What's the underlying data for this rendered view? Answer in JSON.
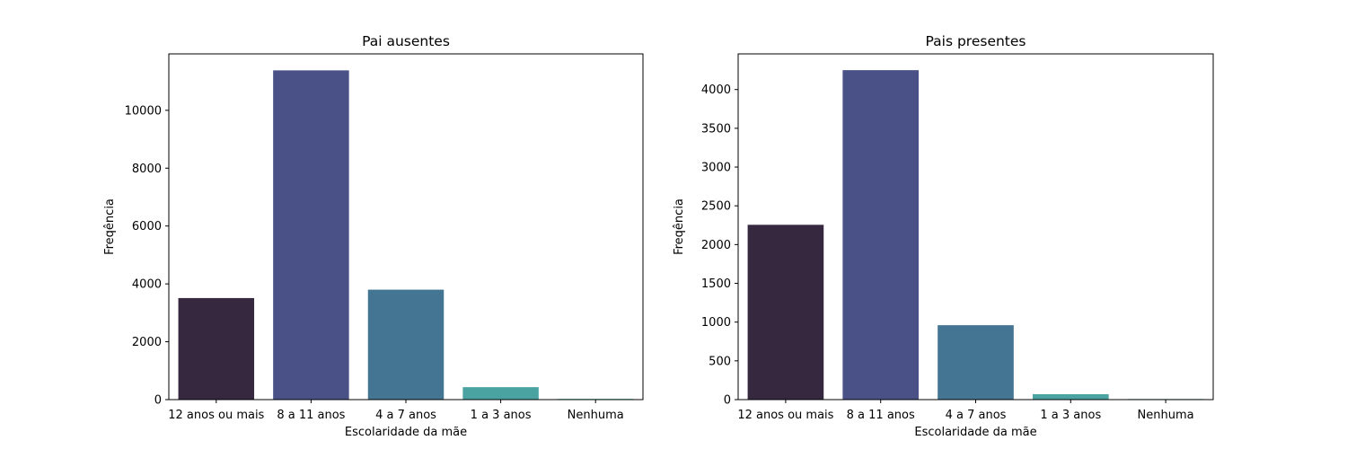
{
  "chart_data": [
    {
      "type": "bar",
      "title": "Pai ausentes",
      "xlabel": "Escolaridade da mãe",
      "ylabel": "Freqência",
      "categories": [
        "12 anos ou mais",
        "8 a 11 anos",
        "4 a 7 anos",
        "1 a 3 anos",
        "Nenhuma"
      ],
      "values": [
        3510,
        11380,
        3800,
        430,
        25
      ],
      "ylim": [
        0,
        11950
      ],
      "yticks": [
        0,
        2000,
        4000,
        6000,
        8000,
        10000
      ],
      "ytick_labels": [
        "0",
        "2000",
        "4000",
        "6000",
        "8000",
        "10000"
      ],
      "colors": [
        "#35283f",
        "#4a5186",
        "#447592",
        "#4aa3a1",
        "#5ec9a9"
      ],
      "grid": false,
      "legend": "none"
    },
    {
      "type": "bar",
      "title": "Pais presentes",
      "xlabel": "Escolaridade da mãe",
      "ylabel": "Freqência",
      "categories": [
        "12 anos ou mais",
        "8 a 11 anos",
        "4 a 7 anos",
        "1 a 3 anos",
        "Nenhuma"
      ],
      "values": [
        2255,
        4250,
        960,
        70,
        8
      ],
      "ylim": [
        0,
        4460
      ],
      "yticks": [
        0,
        500,
        1000,
        1500,
        2000,
        2500,
        3000,
        3500,
        4000
      ],
      "ytick_labels": [
        "0",
        "500",
        "1000",
        "1500",
        "2000",
        "2500",
        "3000",
        "3500",
        "4000"
      ],
      "colors": [
        "#35283f",
        "#4a5186",
        "#447592",
        "#4aa3a1",
        "#5ec9a9"
      ],
      "grid": false,
      "legend": "none"
    }
  ]
}
